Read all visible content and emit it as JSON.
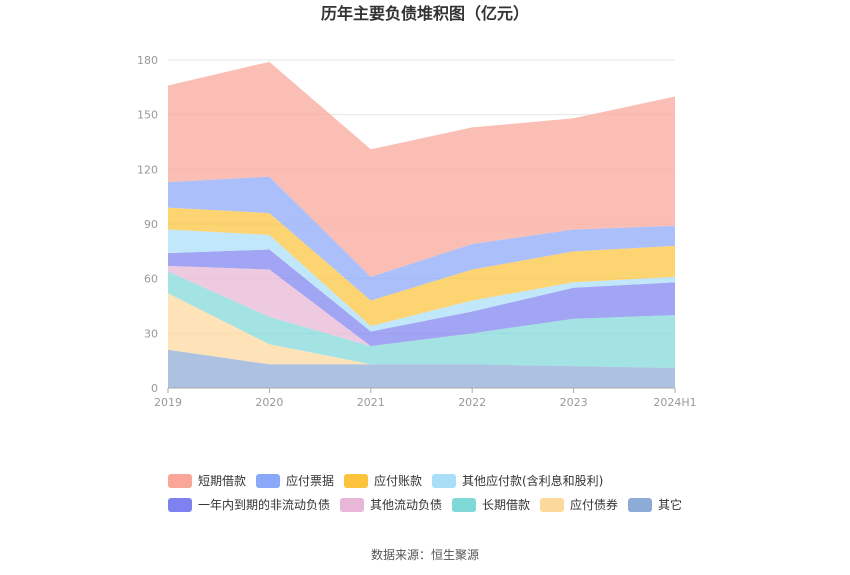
{
  "chart_data": {
    "type": "area",
    "stacked": true,
    "title": "历年主要负债堆积图（亿元）",
    "categories": [
      "2019",
      "2020",
      "2021",
      "2022",
      "2023",
      "2024H1"
    ],
    "ylim": [
      0,
      180
    ],
    "yticks": [
      "0",
      "30",
      "60",
      "90",
      "120",
      "150",
      "180"
    ],
    "grid": true,
    "legend_position": "bottom",
    "series": [
      {
        "name": "其它",
        "color": "#8eaad6",
        "values": [
          21,
          13,
          13,
          13,
          12,
          11
        ]
      },
      {
        "name": "应付债券",
        "color": "#fdd89d",
        "values": [
          31,
          11,
          0,
          0,
          0,
          0
        ]
      },
      {
        "name": "长期借款",
        "color": "#80d8d8",
        "values": [
          12,
          15,
          10,
          17,
          26,
          29
        ]
      },
      {
        "name": "其他流动负债",
        "color": "#e8b6d6",
        "values": [
          3,
          26,
          0,
          0,
          0,
          0
        ]
      },
      {
        "name": "一年内到期的非流动负债",
        "color": "#7e82f0",
        "values": [
          7,
          11,
          8,
          12,
          17,
          18
        ]
      },
      {
        "name": "其他应付款(含利息和股利)",
        "color": "#a8def8",
        "values": [
          13,
          8,
          3,
          6,
          3,
          3
        ]
      },
      {
        "name": "应付账款",
        "color": "#fcc33c",
        "values": [
          12,
          12,
          14,
          17,
          17,
          17
        ]
      },
      {
        "name": "应付票据",
        "color": "#8aa8f8",
        "values": [
          14,
          20,
          13,
          14,
          12,
          11
        ]
      },
      {
        "name": "短期借款",
        "color": "#f9a598",
        "values": [
          53,
          63,
          70,
          64,
          61,
          71
        ]
      }
    ],
    "legend_order": [
      "短期借款",
      "应付票据",
      "应付账款",
      "其他应付款(含利息和股利)",
      "一年内到期的非流动负债",
      "其他流动负债",
      "长期借款",
      "应付债券",
      "其它"
    ]
  },
  "source": "数据来源：恒生聚源"
}
